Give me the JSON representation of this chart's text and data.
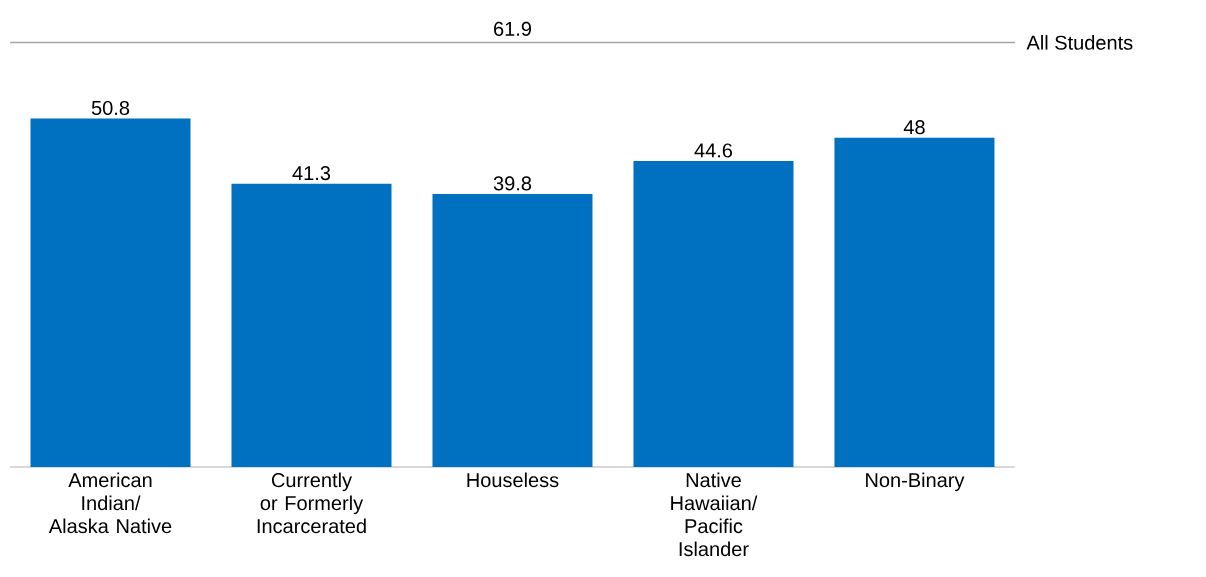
{
  "chart_data": {
    "type": "bar",
    "categories": [
      "American Indian/ Alaska Native",
      "Currently or Formerly Incarcerated",
      "Houseless",
      "Native Hawaiian/ Pacific Islander",
      "Non-Binary"
    ],
    "values": [
      50.8,
      41.3,
      39.8,
      44.6,
      48
    ],
    "color": "#0070c0",
    "data_labels": true,
    "ref_lines": [
      {
        "axis": "y",
        "value": 61.9,
        "label": "All Students",
        "color": "#a6a6a6"
      }
    ],
    "annotations": [
      {
        "text": "61.9",
        "y": 61.9
      }
    ],
    "tick_labels": "x"
  }
}
